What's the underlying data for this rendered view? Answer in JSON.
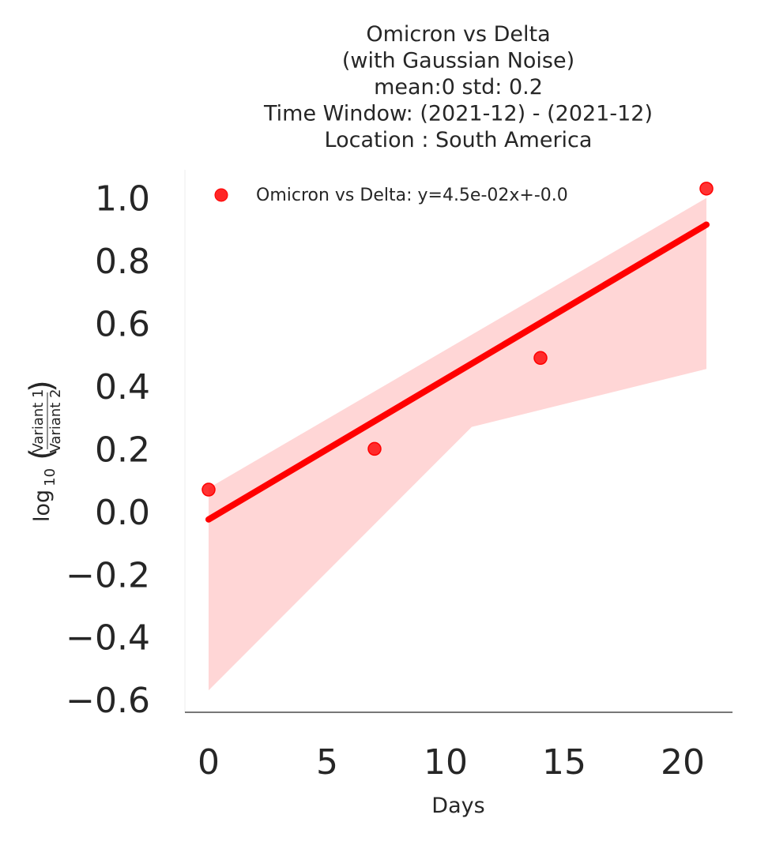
{
  "chart_data": {
    "type": "scatter",
    "title_lines": [
      "Omicron vs Delta",
      "(with Gaussian Noise)",
      "mean:0 std: 0.2",
      "Time Window: (2021-12) - (2021-12)",
      "Location : South America"
    ],
    "xlabel": "Days",
    "ylabel": {
      "prefix": "log",
      "subscript": "10",
      "numerator": "Variant 1",
      "denominator": "Variant 2"
    },
    "xlim": [
      -1,
      22.1
    ],
    "ylim": [
      -0.64,
      1.09
    ],
    "x_ticks": [
      0,
      5,
      10,
      15,
      20
    ],
    "x_tick_labels": [
      "0",
      "5",
      "10",
      "15",
      "20"
    ],
    "y_ticks": [
      1.0,
      0.8,
      0.6,
      0.4,
      0.2,
      0.0,
      -0.2,
      -0.4,
      -0.6
    ],
    "y_tick_labels": [
      "1.0",
      "0.8",
      "0.6",
      "0.4",
      "0.2",
      "0.0",
      "−0.2",
      "−0.4",
      "−0.6"
    ],
    "grid": false,
    "legend_position": "top-left",
    "series": [
      {
        "name": "Omicron vs Delta: y=4.5e-02x+-0.0",
        "color": "#ff0000",
        "points": [
          {
            "x": 0,
            "y": 0.07
          },
          {
            "x": 7,
            "y": 0.2
          },
          {
            "x": 14,
            "y": 0.49
          },
          {
            "x": 21,
            "y": 1.03
          }
        ],
        "fit_line": {
          "x": [
            0,
            21
          ],
          "y": [
            -0.025,
            0.915
          ]
        },
        "confidence_band": {
          "color": "#ffd6d6",
          "upper": [
            {
              "x": 0,
              "y": 0.075
            },
            {
              "x": 21,
              "y": 1.0
            }
          ],
          "lower": [
            {
              "x": 0,
              "y": -0.57
            },
            {
              "x": 11.1,
              "y": 0.27
            },
            {
              "x": 21,
              "y": 0.455
            }
          ]
        }
      }
    ]
  }
}
